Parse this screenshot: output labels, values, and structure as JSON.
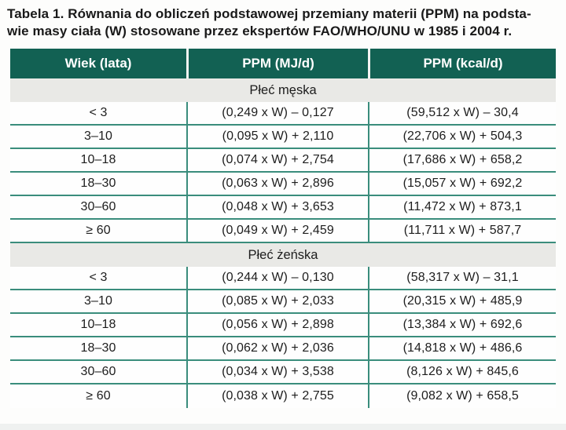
{
  "title": {
    "line1": "Tabela 1. Równania do obliczeń podstawowej przemiany materii (PPM) na podsta-",
    "line2": "wie masy ciała (W) stosowane przez ekspertów FAO/WHO/UNU w 1985 i 2004 r."
  },
  "table": {
    "columns": [
      "Wiek (lata)",
      "PPM (MJ/d)",
      "PPM (kcal/d)"
    ],
    "sections": [
      {
        "label": "Płeć męska",
        "rows": [
          [
            "< 3",
            "(0,249 x W) – 0,127",
            "(59,512 x W) – 30,4"
          ],
          [
            "3–10",
            "(0,095 x W) + 2,110",
            "(22,706 x W) + 504,3"
          ],
          [
            "10–18",
            "(0,074 x W) + 2,754",
            "(17,686 x W) + 658,2"
          ],
          [
            "18–30",
            "(0,063 x W) + 2,896",
            "(15,057 x W) + 692,2"
          ],
          [
            "30–60",
            "(0,048 x W) + 3,653",
            "(11,472 x W) + 873,1"
          ],
          [
            "≥ 60",
            "(0,049 x W) + 2,459",
            "(11,711 x W) + 587,7"
          ]
        ]
      },
      {
        "label": "Płeć żeńska",
        "rows": [
          [
            "< 3",
            "(0,244 x W) – 0,130",
            "(58,317 x W) – 31,1"
          ],
          [
            "3–10",
            "(0,085 x W) + 2,033",
            "(20,315 x W) + 485,9"
          ],
          [
            "10–18",
            "(0,056 x W) + 2,898",
            "(13,384 x W) + 692,6"
          ],
          [
            "18–30",
            "(0,062 x W) + 2,036",
            "(14,818 x W) + 486,6"
          ],
          [
            "30–60",
            "(0,034 x W) + 3,538",
            "(8,126 x W) + 845,6"
          ],
          [
            "≥ 60",
            "(0,038 x W) + 2,755",
            "(9,082 x W) + 658,5"
          ]
        ]
      }
    ]
  },
  "colors": {
    "header_bg": "#126153",
    "header_text": "#ffffff",
    "grid_line": "#3a8d7c",
    "section_bg": "#e9e9e6",
    "body_text": "#1d1d1d",
    "page_edge": "#eff1f0"
  }
}
